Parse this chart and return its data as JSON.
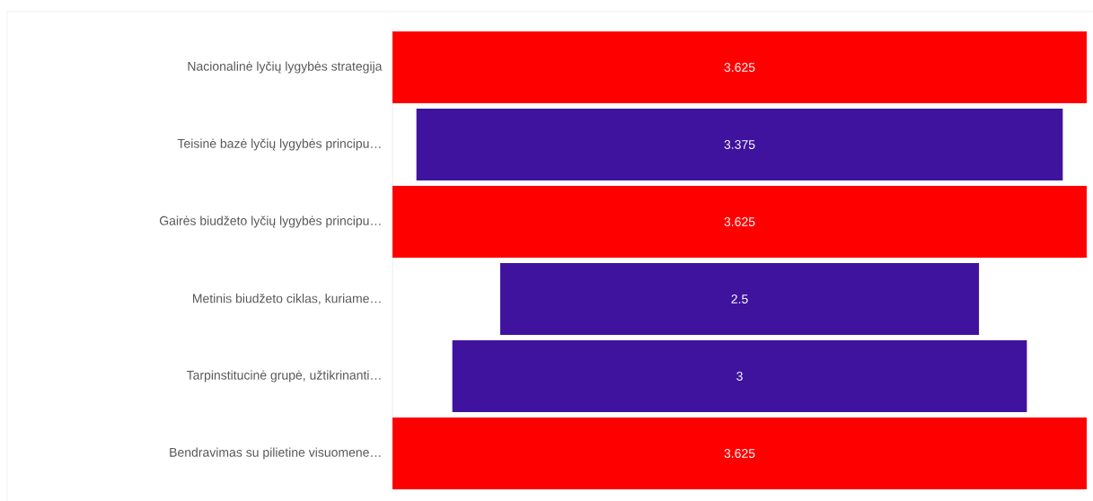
{
  "chart_data": {
    "type": "other",
    "categories": [
      "Nacionalinė lyčių lygybės strategija",
      "Teisinė bazė lyčių lygybės principu…",
      "Gairės biudžeto lyčių lygybės principu…",
      "Metinis biudžeto ciklas, kuriame…",
      "Tarpinstitucinė grupė, užtikrinanti…",
      "Bendravimas su pilietine visuomene…"
    ],
    "values": [
      3.625,
      3.375,
      3.625,
      2.5,
      3,
      3.625
    ],
    "colors": [
      "#ff0000",
      "#3f139e",
      "#ff0000",
      "#3f139e",
      "#3f139e",
      "#ff0000"
    ],
    "data_labels": true
  }
}
